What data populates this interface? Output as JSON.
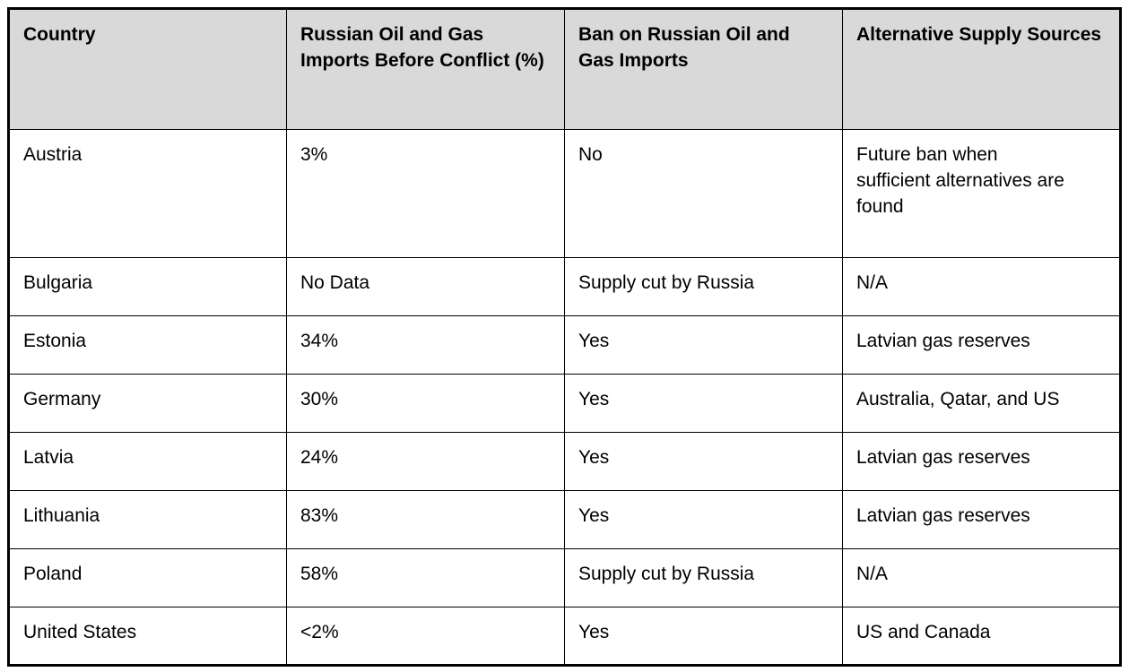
{
  "table": {
    "header": {
      "bg_color": "#d9d9d9",
      "columns": [
        "Country",
        "Russian Oil and Gas Imports Before Conflict (%)",
        "Ban on Russian Oil and Gas Imports",
        "Alternative Supply Sources"
      ]
    },
    "rows": [
      [
        "Austria",
        "3%",
        "No",
        "Future ban when sufficient alternatives are found"
      ],
      [
        "Bulgaria",
        "No Data",
        "Supply cut by Russia",
        "N/A"
      ],
      [
        "Estonia",
        "34%",
        "Yes",
        "Latvian gas reserves"
      ],
      [
        "Germany",
        "30%",
        "Yes",
        "Australia, Qatar, and US"
      ],
      [
        "Latvia",
        "24%",
        "Yes",
        "Latvian gas reserves"
      ],
      [
        "Lithuania",
        "83%",
        "Yes",
        "Latvian gas reserves"
      ],
      [
        "Poland",
        "58%",
        "Supply cut by Russia",
        "N/A"
      ],
      [
        "United States",
        "<2%",
        "Yes",
        "US and Canada"
      ]
    ],
    "colors": {
      "border": "#000000",
      "text": "#000000",
      "header_bg": "#d9d9d9",
      "page_bg": "#ffffff"
    }
  }
}
